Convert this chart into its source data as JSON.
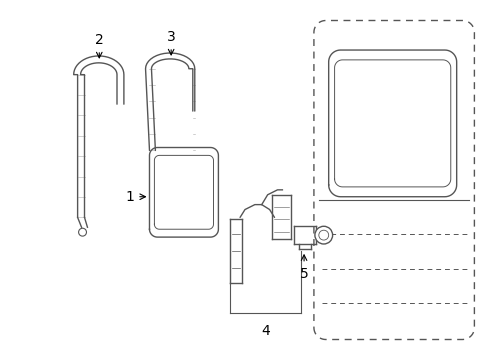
{
  "background_color": "#ffffff",
  "line_color": "#555555",
  "label_color": "#000000",
  "figsize": [
    4.89,
    3.6
  ],
  "dpi": 100
}
